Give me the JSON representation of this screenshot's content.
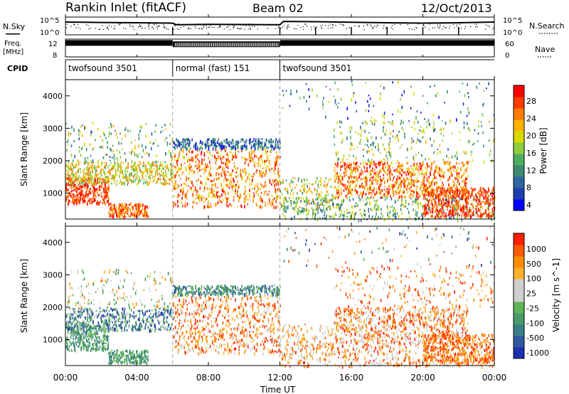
{
  "header": {
    "station": "Rankin Inlet (fitACF)",
    "beam": "Beam 02",
    "date": "12/Oct/2013"
  },
  "top_panels": {
    "nsky_label": "N.Sky",
    "nsky_ticks": [
      "10^5",
      "10^0"
    ],
    "nsearch_label": "N.Search",
    "nsearch_ticks": [
      "10^5",
      "10^0"
    ],
    "freq_label": "Freq.",
    "freq_unit": "[MHz]",
    "freq_ticks": [
      "12",
      "8"
    ],
    "nave_label": "Nave",
    "nave_ticks": [
      "60",
      "0"
    ],
    "cpid_label": "CPID",
    "cpid_segments": [
      {
        "label": "twofsound 3501",
        "start_h": 0,
        "end_h": 6
      },
      {
        "label": "normal (fast) 151",
        "start_h": 6,
        "end_h": 12
      },
      {
        "label": "twofsound 3501",
        "start_h": 12,
        "end_h": 24
      }
    ]
  },
  "x_axis": {
    "title": "Time UT",
    "ticks": [
      "00:00",
      "04:00",
      "08:00",
      "12:00",
      "16:00",
      "20:00",
      "00:00"
    ]
  },
  "power_colorbar": {
    "label": "Power [dB]",
    "ticks": [
      "28",
      "24",
      "20",
      "16",
      "12",
      "8",
      "4"
    ],
    "colors": [
      "#0000ff",
      "#1f3fb0",
      "#2f66a0",
      "#3d8a70",
      "#4fae62",
      "#8fce3a",
      "#d8d800",
      "#ffb000",
      "#ff7a00",
      "#ff3a00",
      "#ff0000"
    ]
  },
  "velocity_colorbar": {
    "label": "Velocity [m s^-1]",
    "ticks": [
      "1000",
      "500",
      "100",
      "25",
      "-25",
      "-100",
      "-500",
      "-1000"
    ],
    "colors": [
      "#1b2fb0",
      "#2f5aa0",
      "#3a7d84",
      "#4a9a6a",
      "#5fb455",
      "#cfcfcf",
      "#cfcfcf",
      "#ffb02a",
      "#ff8c00",
      "#ff5a00",
      "#ff2000"
    ]
  },
  "chart_data": [
    {
      "type": "line",
      "title": "",
      "ylabel": "N.Sky",
      "y2label": "N.Search",
      "xlim": [
        0,
        24
      ],
      "ylim": [
        1,
        100000
      ],
      "yscale": "log",
      "series": [
        {
          "x": [
            0,
            2,
            4,
            6,
            6.2,
            8,
            10,
            12,
            12.2,
            14,
            16,
            18,
            20,
            22,
            24
          ],
          "values": [
            4000,
            3000,
            2500,
            2000,
            700,
            900,
            800,
            700,
            6000,
            5000,
            3500,
            2500,
            2000,
            2500,
            4000
          ]
        }
      ]
    },
    {
      "type": "line",
      "ylabel": "Freq. [MHz]",
      "y2label": "Nave",
      "xlim": [
        0,
        24
      ],
      "ylim": [
        8,
        12
      ],
      "series": [
        {
          "x": [
            0,
            6,
            6.01,
            12,
            12.01,
            24
          ],
          "values": [
            11.3,
            11.3,
            11.0,
            11.0,
            11.3,
            11.3
          ]
        }
      ]
    },
    {
      "type": "heatmap",
      "ylabel": "Slant Range [km]",
      "xlabel": "",
      "colorbar_label": "Power [dB]",
      "xlim": [
        0,
        24
      ],
      "ylim": [
        200,
        4500
      ],
      "y_ticks": [
        1000,
        2000,
        3000,
        4000
      ],
      "zlim": [
        0,
        30
      ],
      "mode_changes_h": [
        6,
        12
      ]
    },
    {
      "type": "heatmap",
      "ylabel": "Slant Range [km]",
      "xlabel": "Time UT",
      "colorbar_label": "Velocity [m s^-1]",
      "xlim": [
        0,
        24
      ],
      "ylim": [
        200,
        4500
      ],
      "y_ticks": [
        1000,
        2000,
        3000,
        4000
      ],
      "zlim": [
        -1000,
        1000
      ],
      "mode_changes_h": [
        6,
        12
      ]
    }
  ]
}
